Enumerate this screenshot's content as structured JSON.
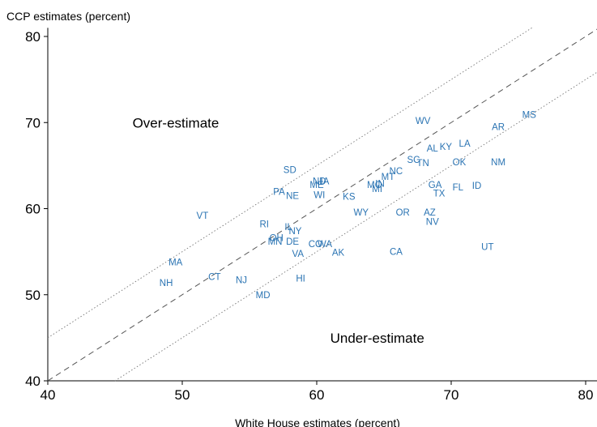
{
  "chart_data": {
    "type": "scatter",
    "ylabel": "CCP estimates (percent)",
    "xlabel": "White House estimates (percent)",
    "xlim": [
      40,
      81
    ],
    "ylim": [
      40,
      81
    ],
    "xticks": [
      "40",
      "50",
      "60",
      "70",
      "80"
    ],
    "yticks": [
      "40",
      "50",
      "60",
      "70",
      "80"
    ],
    "grid": false,
    "label_color": "#2b74b3",
    "annotations": [
      {
        "text": "Over-estimate",
        "x": 46.3,
        "y": 70
      },
      {
        "text": "Under-estimate",
        "x": 61,
        "y": 45
      }
    ],
    "reference_lines": [
      {
        "style": "dashed",
        "intercept": 0,
        "slope": 1
      },
      {
        "style": "dotted",
        "intercept": 5,
        "slope": 1
      },
      {
        "style": "dotted",
        "intercept": -5,
        "slope": 1
      }
    ],
    "points": [
      {
        "label": "VT",
        "x": 51.5,
        "y": 59.2
      },
      {
        "label": "MA",
        "x": 49.5,
        "y": 53.8
      },
      {
        "label": "NH",
        "x": 48.8,
        "y": 51.4
      },
      {
        "label": "CT",
        "x": 52.4,
        "y": 52.1
      },
      {
        "label": "NJ",
        "x": 54.4,
        "y": 51.7
      },
      {
        "label": "MD",
        "x": 56.0,
        "y": 50.0
      },
      {
        "label": "RI",
        "x": 56.1,
        "y": 58.2
      },
      {
        "label": "SD",
        "x": 58.0,
        "y": 64.5
      },
      {
        "label": "PA",
        "x": 57.2,
        "y": 62.0
      },
      {
        "label": "NE",
        "x": 58.2,
        "y": 61.5
      },
      {
        "label": "ME",
        "x": 60.0,
        "y": 62.8
      },
      {
        "label": "ND",
        "x": 60.2,
        "y": 63.2
      },
      {
        "label": "IA",
        "x": 60.6,
        "y": 63.2
      },
      {
        "label": "WI",
        "x": 60.2,
        "y": 61.6
      },
      {
        "label": "IL",
        "x": 57.9,
        "y": 57.9
      },
      {
        "label": "NY",
        "x": 58.4,
        "y": 57.4
      },
      {
        "label": "OH",
        "x": 57.0,
        "y": 56.6
      },
      {
        "label": "MN",
        "x": 56.9,
        "y": 56.2
      },
      {
        "label": "DE",
        "x": 58.2,
        "y": 56.2
      },
      {
        "label": "CO",
        "x": 59.9,
        "y": 55.9
      },
      {
        "label": "WA",
        "x": 60.6,
        "y": 55.9
      },
      {
        "label": "VA",
        "x": 58.6,
        "y": 54.8
      },
      {
        "label": "AK",
        "x": 61.6,
        "y": 54.9
      },
      {
        "label": "HI",
        "x": 58.8,
        "y": 51.9
      },
      {
        "label": "KS",
        "x": 62.4,
        "y": 61.4
      },
      {
        "label": "WY",
        "x": 63.3,
        "y": 59.6
      },
      {
        "label": "MO",
        "x": 64.3,
        "y": 62.8
      },
      {
        "label": "IN",
        "x": 64.7,
        "y": 62.9
      },
      {
        "label": "MI",
        "x": 64.5,
        "y": 62.3
      },
      {
        "label": "MT",
        "x": 65.3,
        "y": 63.7
      },
      {
        "label": "NC",
        "x": 65.9,
        "y": 64.4
      },
      {
        "label": "SC",
        "x": 67.2,
        "y": 65.7
      },
      {
        "label": "TN",
        "x": 67.9,
        "y": 65.3
      },
      {
        "label": "WV",
        "x": 67.9,
        "y": 70.2
      },
      {
        "label": "AL",
        "x": 68.6,
        "y": 67.0
      },
      {
        "label": "KY",
        "x": 69.6,
        "y": 67.2
      },
      {
        "label": "LA",
        "x": 71.0,
        "y": 67.6
      },
      {
        "label": "OK",
        "x": 70.6,
        "y": 65.4
      },
      {
        "label": "GA",
        "x": 68.8,
        "y": 62.8
      },
      {
        "label": "TX",
        "x": 69.1,
        "y": 61.8
      },
      {
        "label": "FL",
        "x": 70.5,
        "y": 62.5
      },
      {
        "label": "ID",
        "x": 71.9,
        "y": 62.7
      },
      {
        "label": "AR",
        "x": 73.5,
        "y": 69.5
      },
      {
        "label": "MS",
        "x": 75.8,
        "y": 70.9
      },
      {
        "label": "NM",
        "x": 73.5,
        "y": 65.4
      },
      {
        "label": "OR",
        "x": 66.4,
        "y": 59.6
      },
      {
        "label": "AZ",
        "x": 68.4,
        "y": 59.6
      },
      {
        "label": "NV",
        "x": 68.6,
        "y": 58.5
      },
      {
        "label": "CA",
        "x": 65.9,
        "y": 55.0
      },
      {
        "label": "UT",
        "x": 72.7,
        "y": 55.6
      }
    ]
  }
}
